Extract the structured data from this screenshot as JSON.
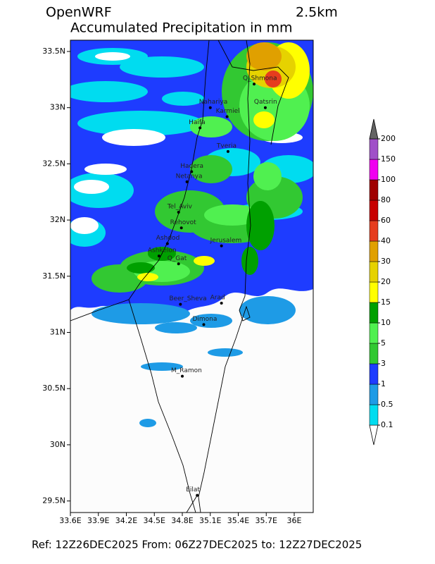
{
  "header": {
    "model": "OpenWRF",
    "resolution": "2.5km",
    "title": "Accumulated Precipitation in mm"
  },
  "map": {
    "lon_ticks": [
      {
        "value": 33.6,
        "label": "33.6E"
      },
      {
        "value": 33.9,
        "label": "33.9E"
      },
      {
        "value": 34.2,
        "label": "34.2E"
      },
      {
        "value": 34.5,
        "label": "34.5E"
      },
      {
        "value": 34.8,
        "label": "34.8E"
      },
      {
        "value": 35.1,
        "label": "35.1E"
      },
      {
        "value": 35.4,
        "label": "35.4E"
      },
      {
        "value": 35.7,
        "label": "35.7E"
      },
      {
        "value": 36,
        "label": "36E"
      }
    ],
    "lat_ticks": [
      {
        "value": 33.5,
        "label": "33.5N"
      },
      {
        "value": 33,
        "label": "33N"
      },
      {
        "value": 32.5,
        "label": "32.5N"
      },
      {
        "value": 32,
        "label": "32N"
      },
      {
        "value": 31.5,
        "label": "31.5N"
      },
      {
        "value": 31,
        "label": "31N"
      },
      {
        "value": 30.5,
        "label": "30.5N"
      },
      {
        "value": 30,
        "label": "30N"
      },
      {
        "value": 29.5,
        "label": "29.5N"
      }
    ],
    "cities": [
      {
        "name": "Q_Shmona",
        "lon": 35.57,
        "lat": 33.21
      },
      {
        "name": "Nahariya",
        "lon": 35.1,
        "lat": 33.0
      },
      {
        "name": "Karmiel",
        "lon": 35.28,
        "lat": 32.92
      },
      {
        "name": "Qatsrin",
        "lon": 35.69,
        "lat": 33.0
      },
      {
        "name": "Haifa",
        "lon": 34.99,
        "lat": 32.82
      },
      {
        "name": "Tveria",
        "lon": 35.29,
        "lat": 32.61
      },
      {
        "name": "Hadera",
        "lon": 34.9,
        "lat": 32.43
      },
      {
        "name": "Netanya",
        "lon": 34.85,
        "lat": 32.34
      },
      {
        "name": "Tel_Aviv",
        "lon": 34.76,
        "lat": 32.07
      },
      {
        "name": "Rehovot",
        "lon": 34.79,
        "lat": 31.93
      },
      {
        "name": "Ashdod",
        "lon": 34.64,
        "lat": 31.79
      },
      {
        "name": "Jerusalem",
        "lon": 35.22,
        "lat": 31.77
      },
      {
        "name": "Ashkelon",
        "lon": 34.55,
        "lat": 31.68
      },
      {
        "name": "Q_Gat",
        "lon": 34.76,
        "lat": 31.61
      },
      {
        "name": "Beer_Sheva",
        "lon": 34.78,
        "lat": 31.25
      },
      {
        "name": "Arad",
        "lon": 35.22,
        "lat": 31.26
      },
      {
        "name": "Dimona",
        "lon": 35.03,
        "lat": 31.07
      },
      {
        "name": "M_Ramon",
        "lon": 34.8,
        "lat": 30.61
      },
      {
        "name": "Eilat",
        "lon": 34.96,
        "lat": 29.55
      }
    ]
  },
  "colorbar": {
    "levels": [
      0.1,
      0.5,
      1,
      3,
      5,
      10,
      15,
      20,
      30,
      40,
      60,
      80,
      100,
      150,
      200
    ],
    "colors": [
      "#ffffff",
      "#00dcf0",
      "#1e9be6",
      "#1e3cff",
      "#32c832",
      "#50f050",
      "#00a000",
      "#ffff00",
      "#e6d200",
      "#e0a000",
      "#e63c1e",
      "#c80000",
      "#a00000",
      "#f000f0",
      "#a050c8",
      "#646464"
    ]
  },
  "footer": "Ref: 12Z26DEC2025  From: 06Z27DEC2025  to: 12Z27DEC2025"
}
